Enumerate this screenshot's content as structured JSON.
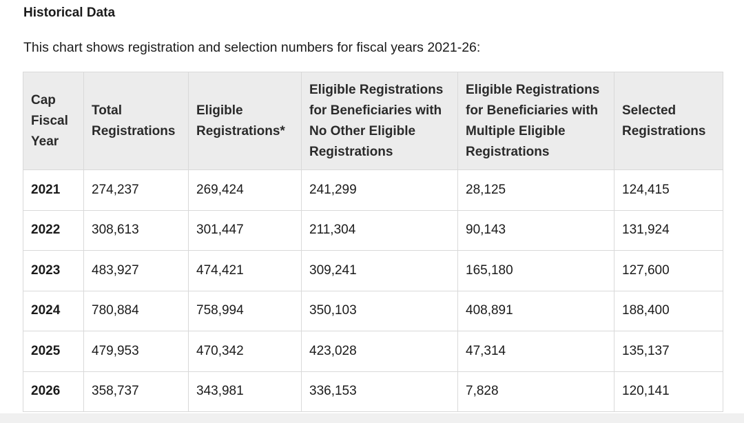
{
  "section": {
    "title": "Historical Data",
    "intro": "This chart shows registration and selection numbers for fiscal years 2021-26:"
  },
  "table": {
    "headers": [
      "Cap Fiscal Year",
      "Total Registrations",
      "Eligible Registrations*",
      "Eligible Registrations for Beneficiaries with No Other Eligible Registrations",
      "Eligible Registrations for Beneficiaries with Multiple Eligible Registrations",
      "Selected Registrations"
    ],
    "rows": [
      [
        "2021",
        "274,237",
        "269,424",
        "241,299",
        "28,125",
        "124,415"
      ],
      [
        "2022",
        "308,613",
        "301,447",
        "211,304",
        "90,143",
        "131,924"
      ],
      [
        "2023",
        "483,927",
        "474,421",
        "309,241",
        "165,180",
        "127,600"
      ],
      [
        "2024",
        "780,884",
        "758,994",
        "350,103",
        "408,891",
        "188,400"
      ],
      [
        "2025",
        "479,953",
        "470,342",
        "423,028",
        "47,314",
        "135,137"
      ],
      [
        "2026",
        "358,737",
        "343,981",
        "336,153",
        "7,828",
        "120,141"
      ]
    ]
  }
}
